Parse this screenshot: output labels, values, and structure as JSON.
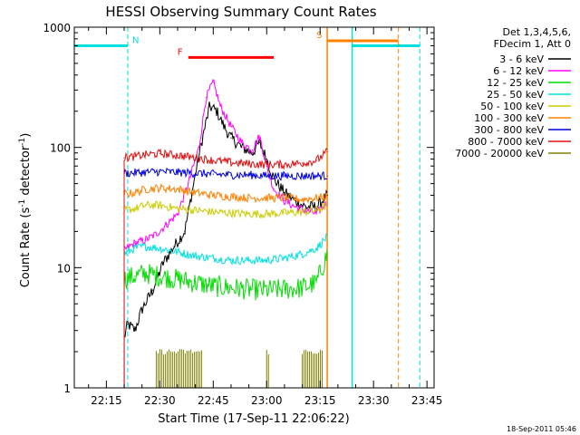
{
  "chart_data": {
    "type": "line",
    "title": "HESSI Observing Summary Count Rates",
    "xlabel": "Start Time (17-Sep-11 22:06:22)",
    "ylabel_main": "Count Rate (s",
    "ylabel_sup1": "-1",
    "ylabel_mid": " detector",
    "ylabel_sup2": "-1",
    "ylabel_end": ")",
    "yscale": "log",
    "ylim": [
      1,
      1000
    ],
    "xlim": [
      "22:06",
      "23:47"
    ],
    "x_ticks": [
      "22:15",
      "22:30",
      "22:45",
      "23:00",
      "23:15",
      "23:30",
      "23:45"
    ],
    "y_ticks": [
      "1",
      "10",
      "100",
      "1000"
    ],
    "legend_header": [
      "Det 1,3,4,5,6,",
      "FDecim 1, Att 0"
    ],
    "series": [
      {
        "name": "3 - 6 keV",
        "color": "#000000",
        "points": [
          [
            "22:20",
            2.6
          ],
          [
            "22:21",
            3.4
          ],
          [
            "22:23",
            3.0
          ],
          [
            "22:25",
            4.5
          ],
          [
            "22:28",
            6.5
          ],
          [
            "22:31",
            11
          ],
          [
            "22:34",
            15
          ],
          [
            "22:37",
            20
          ],
          [
            "22:40",
            60
          ],
          [
            "22:42",
            120
          ],
          [
            "22:44",
            220
          ],
          [
            "22:46",
            200
          ],
          [
            "22:48",
            150
          ],
          [
            "22:50",
            120
          ],
          [
            "22:53",
            100
          ],
          [
            "22:56",
            90
          ],
          [
            "22:58",
            110
          ],
          [
            "23:00",
            80
          ],
          [
            "23:02",
            55
          ],
          [
            "23:05",
            42
          ],
          [
            "23:08",
            36
          ],
          [
            "23:11",
            32
          ],
          [
            "23:14",
            32
          ],
          [
            "23:17",
            40
          ]
        ]
      },
      {
        "name": "6 - 12 keV",
        "color": "#ff00ff",
        "points": [
          [
            "22:20",
            14
          ],
          [
            "22:23",
            16
          ],
          [
            "22:26",
            17
          ],
          [
            "22:29",
            19
          ],
          [
            "22:32",
            23
          ],
          [
            "22:35",
            28
          ],
          [
            "22:38",
            50
          ],
          [
            "22:41",
            100
          ],
          [
            "22:43",
            260
          ],
          [
            "22:45",
            350
          ],
          [
            "22:47",
            220
          ],
          [
            "22:50",
            150
          ],
          [
            "22:53",
            110
          ],
          [
            "22:56",
            95
          ],
          [
            "22:58",
            125
          ],
          [
            "23:00",
            70
          ],
          [
            "23:02",
            45
          ],
          [
            "23:05",
            36
          ],
          [
            "23:08",
            32
          ],
          [
            "23:11",
            30
          ],
          [
            "23:14",
            28
          ],
          [
            "23:17",
            35
          ]
        ]
      },
      {
        "name": "12 - 25 keV",
        "color": "#00dd00",
        "points": [
          [
            "22:20",
            8
          ],
          [
            "22:23",
            8.5
          ],
          [
            "22:26",
            9
          ],
          [
            "22:30",
            8.5
          ],
          [
            "22:35",
            8
          ],
          [
            "22:40",
            7.5
          ],
          [
            "22:45",
            7
          ],
          [
            "22:50",
            6.8
          ],
          [
            "22:55",
            6.6
          ],
          [
            "23:00",
            6.5
          ],
          [
            "23:05",
            6.6
          ],
          [
            "23:10",
            6.8
          ],
          [
            "23:14",
            7.5
          ],
          [
            "23:17",
            13
          ]
        ]
      },
      {
        "name": "25 - 50 keV",
        "color": "#00e0e0",
        "points": [
          [
            "22:20",
            13
          ],
          [
            "22:23",
            14.5
          ],
          [
            "22:26",
            15
          ],
          [
            "22:30",
            14.5
          ],
          [
            "22:35",
            13.5
          ],
          [
            "22:40",
            12.5
          ],
          [
            "22:45",
            12
          ],
          [
            "22:50",
            11.5
          ],
          [
            "22:55",
            11.5
          ],
          [
            "23:00",
            11.5
          ],
          [
            "23:05",
            12
          ],
          [
            "23:10",
            13
          ],
          [
            "23:14",
            14.5
          ],
          [
            "23:17",
            18
          ]
        ]
      },
      {
        "name": "50 - 100 keV",
        "color": "#cccc00",
        "points": [
          [
            "22:20",
            30
          ],
          [
            "22:23",
            31
          ],
          [
            "22:26",
            33
          ],
          [
            "22:30",
            33
          ],
          [
            "22:35",
            31
          ],
          [
            "22:40",
            30
          ],
          [
            "22:45",
            29
          ],
          [
            "22:50",
            28.5
          ],
          [
            "22:55",
            28
          ],
          [
            "23:00",
            28
          ],
          [
            "23:05",
            28.5
          ],
          [
            "23:10",
            29
          ],
          [
            "23:14",
            30
          ],
          [
            "23:17",
            33
          ]
        ]
      },
      {
        "name": "100 - 300 keV",
        "color": "#ff8000",
        "points": [
          [
            "22:20",
            41
          ],
          [
            "22:23",
            42
          ],
          [
            "22:26",
            45
          ],
          [
            "22:30",
            46
          ],
          [
            "22:35",
            45
          ],
          [
            "22:40",
            42
          ],
          [
            "22:45",
            40
          ],
          [
            "22:50",
            39
          ],
          [
            "22:55",
            38
          ],
          [
            "23:00",
            38
          ],
          [
            "23:05",
            38
          ],
          [
            "23:10",
            37
          ],
          [
            "23:14",
            38
          ],
          [
            "23:17",
            39
          ]
        ]
      },
      {
        "name": "300 - 800 keV",
        "color": "#0000dd",
        "points": [
          [
            "22:20",
            61
          ],
          [
            "22:25",
            62
          ],
          [
            "22:30",
            63
          ],
          [
            "22:35",
            62
          ],
          [
            "22:40",
            61
          ],
          [
            "22:45",
            60
          ],
          [
            "22:50",
            59
          ],
          [
            "22:55",
            59
          ],
          [
            "23:00",
            58
          ],
          [
            "23:05",
            58
          ],
          [
            "23:10",
            58
          ],
          [
            "23:14",
            58
          ],
          [
            "23:17",
            58
          ]
        ]
      },
      {
        "name": "800 - 7000 keV",
        "color": "#e01010",
        "points": [
          [
            "22:20",
            82
          ],
          [
            "22:23",
            84
          ],
          [
            "22:26",
            87
          ],
          [
            "22:30",
            89
          ],
          [
            "22:35",
            86
          ],
          [
            "22:40",
            82
          ],
          [
            "22:45",
            78
          ],
          [
            "22:50",
            75
          ],
          [
            "22:55",
            73
          ],
          [
            "23:00",
            72
          ],
          [
            "23:05",
            72
          ],
          [
            "23:10",
            74
          ],
          [
            "23:14",
            78
          ],
          [
            "23:17",
            92
          ]
        ]
      },
      {
        "name": "7000 - 20000 keV",
        "color": "#808000",
        "bursts": [
          [
            "22:29",
            "22:42"
          ],
          [
            "23:00",
            "23:01"
          ],
          [
            "23:10",
            "23:16"
          ]
        ],
        "burst_top": 2.0
      }
    ],
    "flags": {
      "N": {
        "label": "N",
        "color": "#00e0e0",
        "level": 700,
        "spans": [
          [
            "22:06",
            "22:21"
          ],
          [
            "23:24",
            "23:43"
          ]
        ],
        "edges": [
          "22:21",
          "23:24",
          "23:43"
        ],
        "solid_edge": "23:24"
      },
      "F": {
        "label": "F",
        "color": "#ff0000",
        "level": 560,
        "spans": [
          [
            "22:38",
            "23:02"
          ]
        ]
      },
      "S": {
        "label": "S",
        "color": "#ff8000",
        "level": 770,
        "spans": [
          [
            "23:17",
            "23:37"
          ]
        ],
        "edges": [
          "23:17",
          "23:37"
        ],
        "solid_edge": "23:17"
      }
    },
    "data_window": [
      "22:20",
      "23:17"
    ],
    "grid": false,
    "legend_position": "right"
  },
  "footer": {
    "timestamp": "18-Sep-2011 05:46"
  }
}
